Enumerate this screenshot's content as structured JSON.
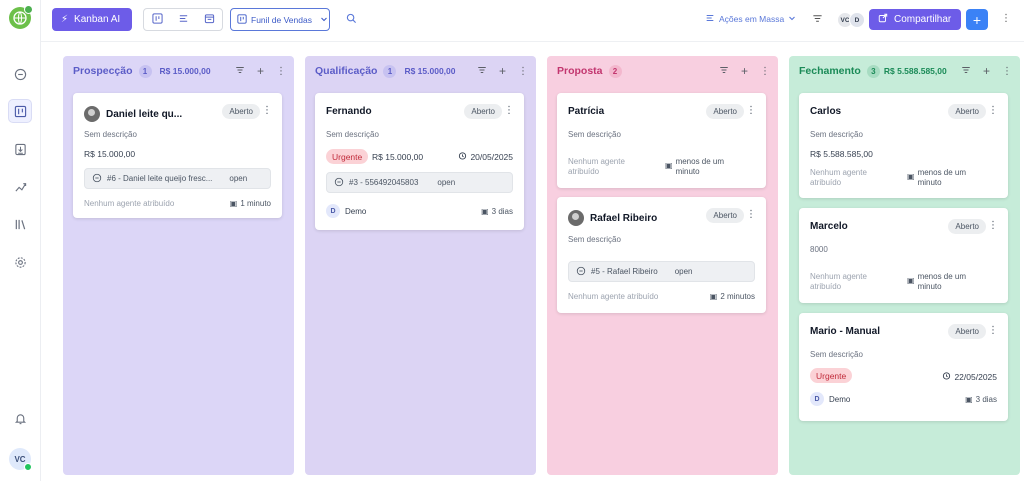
{
  "sidebar": {
    "user_initials": "VC"
  },
  "topbar": {
    "kanban_ai_label": "Kanban AI",
    "funnel_label": "Funil de Vendas",
    "bulk_actions_label": "Ações em Massa",
    "avatars": [
      "VC",
      "D"
    ],
    "share_label": "Compartilhar"
  },
  "columns": [
    {
      "title": "Prospecção",
      "count": "1",
      "total": "R$ 15.000,00",
      "cards": [
        {
          "title": "Daniel leite qu...",
          "status": "Aberto",
          "description": "Sem descrição",
          "value": "R$ 15.000,00",
          "conversation": "#6 - Daniel leite queijo fresc...",
          "conversation_status": "open",
          "agent": "Nenhum agente atribuído",
          "time": "1 minuto"
        }
      ]
    },
    {
      "title": "Qualificação",
      "count": "1",
      "total": "R$ 15.000,00",
      "cards": [
        {
          "title": "Fernando",
          "status": "Aberto",
          "description": "Sem descrição",
          "priority": "Urgente",
          "value": "R$ 15.000,00",
          "due_date": "20/05/2025",
          "conversation": "#3 - 556492045803",
          "conversation_status": "open",
          "agent_initial": "D",
          "agent": "Demo",
          "time": "3 dias"
        }
      ]
    },
    {
      "title": "Proposta",
      "count": "2",
      "total": "",
      "cards": [
        {
          "title": "Patrícia",
          "status": "Aberto",
          "description": "Sem descrição",
          "agent_line1": "Nenhum agente",
          "agent_line2": "atribuído",
          "time_line1": "menos de um",
          "time_line2": "minuto"
        },
        {
          "title": "Rafael Ribeiro",
          "status": "Aberto",
          "description": "Sem descrição",
          "conversation": "#5 - Rafael Ribeiro",
          "conversation_status": "open",
          "agent": "Nenhum agente atribuído",
          "time": "2 minutos"
        }
      ]
    },
    {
      "title": "Fechamento",
      "count": "3",
      "total": "R$ 5.588.585,00",
      "cards": [
        {
          "title": "Carlos",
          "status": "Aberto",
          "description": "Sem descrição",
          "value": "R$ 5.588.585,00",
          "agent_line1": "Nenhum agente",
          "agent_line2": "atribuído",
          "time_line1": "menos de um",
          "time_line2": "minuto"
        },
        {
          "title": "Marcelo",
          "status": "Aberto",
          "description": "8000",
          "agent_line1": "Nenhum agente",
          "agent_line2": "atribuído",
          "time_line1": "menos de um",
          "time_line2": "minuto"
        },
        {
          "title": "Mario - Manual",
          "status": "Aberto",
          "description": "Sem descrição",
          "priority": "Urgente",
          "due_date": "22/05/2025",
          "agent_initial": "D",
          "agent": "Demo",
          "time": "3 dias"
        }
      ]
    }
  ]
}
